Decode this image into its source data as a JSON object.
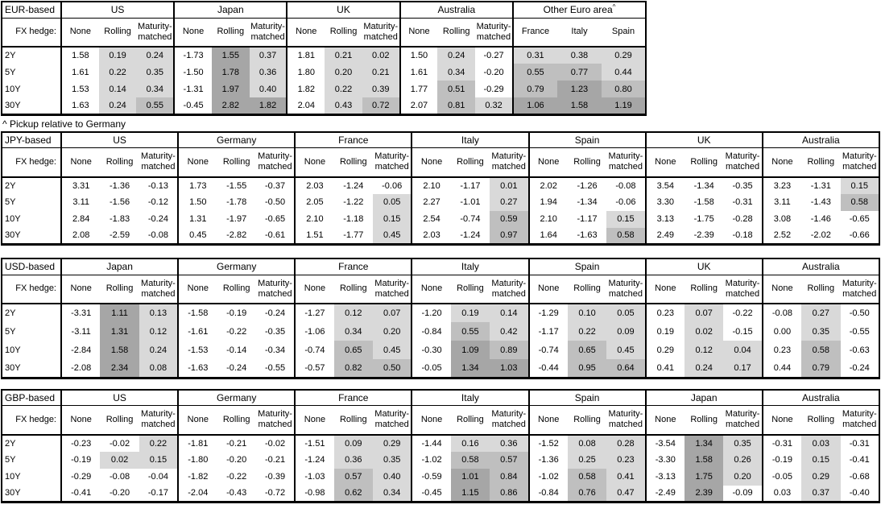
{
  "footnote": "^ Pickup relative to Germany",
  "fx_hedge_label": "FX hedge:",
  "row_labels": [
    "2Y",
    "5Y",
    "10Y",
    "30Y"
  ],
  "sub_headers": [
    "None",
    "Rolling",
    "Maturity-matched"
  ],
  "colors": {
    "cell_light": "#d9d9d9",
    "cell_medium": "#bfbfbf",
    "cell_dark": "#a6a6a6",
    "border": "#000000",
    "background": "#ffffff"
  },
  "shading_legend": {
    "rule": "hedged and pickup columns shaded by value; None columns and negatives unshaded",
    "bins": [
      {
        "min": 0.0,
        "max": 0.5,
        "color": "cell_light"
      },
      {
        "min": 0.5,
        "max": 1.0,
        "color": "cell_medium"
      },
      {
        "min": 1.0,
        "color": "cell_dark"
      }
    ]
  },
  "chart_data": {
    "type": "table",
    "subtype": "heatmap",
    "tables": [
      {
        "id": "eur-based",
        "base_label": "EUR-based",
        "groups": [
          {
            "name": "US",
            "sup": "",
            "columns": [
              "None",
              "Rolling",
              "Maturity-matched"
            ],
            "values": [
              [
                "1.58",
                "0.19",
                "0.24"
              ],
              [
                "1.61",
                "0.22",
                "0.35"
              ],
              [
                "1.53",
                "0.14",
                "0.34"
              ],
              [
                "1.63",
                "0.24",
                "0.55"
              ]
            ]
          },
          {
            "name": "Japan",
            "sup": "",
            "columns": [
              "None",
              "Rolling",
              "Maturity-matched"
            ],
            "values": [
              [
                "-1.73",
                "1.55",
                "0.37"
              ],
              [
                "-1.50",
                "1.78",
                "0.36"
              ],
              [
                "-1.31",
                "1.97",
                "0.40"
              ],
              [
                "-0.45",
                "2.82",
                "1.82"
              ]
            ]
          },
          {
            "name": "UK",
            "sup": "",
            "columns": [
              "None",
              "Rolling",
              "Maturity-matched"
            ],
            "values": [
              [
                "1.81",
                "0.21",
                "0.02"
              ],
              [
                "1.80",
                "0.20",
                "0.21"
              ],
              [
                "1.82",
                "0.22",
                "0.39"
              ],
              [
                "2.04",
                "0.43",
                "0.72"
              ]
            ]
          },
          {
            "name": "Australia",
            "sup": "",
            "columns": [
              "None",
              "Rolling",
              "Maturity-matched"
            ],
            "values": [
              [
                "1.50",
                "0.24",
                "-0.27"
              ],
              [
                "1.61",
                "0.34",
                "-0.20"
              ],
              [
                "1.77",
                "0.51",
                "-0.29"
              ],
              [
                "2.07",
                "0.81",
                "0.32"
              ]
            ]
          },
          {
            "name": "Other Euro area",
            "sup": "^",
            "columns": [
              "France",
              "Italy",
              "Spain"
            ],
            "values": [
              [
                "0.31",
                "0.38",
                "0.29"
              ],
              [
                "0.55",
                "0.77",
                "0.44"
              ],
              [
                "0.79",
                "1.23",
                "0.80"
              ],
              [
                "1.06",
                "1.58",
                "1.19"
              ]
            ]
          }
        ]
      },
      {
        "id": "jpy-based",
        "base_label": "JPY-based",
        "groups": [
          {
            "name": "US",
            "sup": "",
            "columns": [
              "None",
              "Rolling",
              "Maturity-matched"
            ],
            "values": [
              [
                "3.31",
                "-1.36",
                "-0.13"
              ],
              [
                "3.11",
                "-1.56",
                "-0.12"
              ],
              [
                "2.84",
                "-1.83",
                "-0.24"
              ],
              [
                "2.08",
                "-2.59",
                "-0.08"
              ]
            ]
          },
          {
            "name": "Germany",
            "sup": "",
            "columns": [
              "None",
              "Rolling",
              "Maturity-matched"
            ],
            "values": [
              [
                "1.73",
                "-1.55",
                "-0.37"
              ],
              [
                "1.50",
                "-1.78",
                "-0.50"
              ],
              [
                "1.31",
                "-1.97",
                "-0.65"
              ],
              [
                "0.45",
                "-2.82",
                "-0.61"
              ]
            ]
          },
          {
            "name": "France",
            "sup": "",
            "columns": [
              "None",
              "Rolling",
              "Maturity-matched"
            ],
            "values": [
              [
                "2.03",
                "-1.24",
                "-0.06"
              ],
              [
                "2.05",
                "-1.22",
                "0.05"
              ],
              [
                "2.10",
                "-1.18",
                "0.15"
              ],
              [
                "1.51",
                "-1.77",
                "0.45"
              ]
            ]
          },
          {
            "name": "Italy",
            "sup": "",
            "columns": [
              "None",
              "Rolling",
              "Maturity-matched"
            ],
            "values": [
              [
                "2.10",
                "-1.17",
                "0.01"
              ],
              [
                "2.27",
                "-1.01",
                "0.27"
              ],
              [
                "2.54",
                "-0.74",
                "0.59"
              ],
              [
                "2.03",
                "-1.24",
                "0.97"
              ]
            ]
          },
          {
            "name": "Spain",
            "sup": "",
            "columns": [
              "None",
              "Rolling",
              "Maturity-matched"
            ],
            "values": [
              [
                "2.02",
                "-1.26",
                "-0.08"
              ],
              [
                "1.94",
                "-1.34",
                "-0.06"
              ],
              [
                "2.10",
                "-1.17",
                "0.15"
              ],
              [
                "1.64",
                "-1.63",
                "0.58"
              ]
            ]
          },
          {
            "name": "UK",
            "sup": "",
            "columns": [
              "None",
              "Rolling",
              "Maturity-matched"
            ],
            "values": [
              [
                "3.54",
                "-1.34",
                "-0.35"
              ],
              [
                "3.30",
                "-1.58",
                "-0.31"
              ],
              [
                "3.13",
                "-1.75",
                "-0.28"
              ],
              [
                "2.49",
                "-2.39",
                "-0.18"
              ]
            ]
          },
          {
            "name": "Australia",
            "sup": "",
            "columns": [
              "None",
              "Rolling",
              "Maturity-matched"
            ],
            "values": [
              [
                "3.23",
                "-1.31",
                "0.15"
              ],
              [
                "3.11",
                "-1.43",
                "0.58"
              ],
              [
                "3.08",
                "-1.46",
                "-0.65"
              ],
              [
                "2.52",
                "-2.02",
                "-0.66"
              ]
            ]
          }
        ]
      },
      {
        "id": "usd-based",
        "base_label": "USD-based",
        "groups": [
          {
            "name": "Japan",
            "sup": "",
            "columns": [
              "None",
              "Rolling",
              "Maturity-matched"
            ],
            "values": [
              [
                "-3.31",
                "1.11",
                "0.13"
              ],
              [
                "-3.11",
                "1.31",
                "0.12"
              ],
              [
                "-2.84",
                "1.58",
                "0.24"
              ],
              [
                "-2.08",
                "2.34",
                "0.08"
              ]
            ]
          },
          {
            "name": "Germany",
            "sup": "",
            "columns": [
              "None",
              "Rolling",
              "Maturity-matched"
            ],
            "values": [
              [
                "-1.58",
                "-0.19",
                "-0.24"
              ],
              [
                "-1.61",
                "-0.22",
                "-0.35"
              ],
              [
                "-1.53",
                "-0.14",
                "-0.34"
              ],
              [
                "-1.63",
                "-0.24",
                "-0.55"
              ]
            ]
          },
          {
            "name": "France",
            "sup": "",
            "columns": [
              "None",
              "Rolling",
              "Maturity-matched"
            ],
            "values": [
              [
                "-1.27",
                "0.12",
                "0.07"
              ],
              [
                "-1.06",
                "0.34",
                "0.20"
              ],
              [
                "-0.74",
                "0.65",
                "0.45"
              ],
              [
                "-0.57",
                "0.82",
                "0.50"
              ]
            ]
          },
          {
            "name": "Italy",
            "sup": "",
            "columns": [
              "None",
              "Rolling",
              "Maturity-matched"
            ],
            "values": [
              [
                "-1.20",
                "0.19",
                "0.14"
              ],
              [
                "-0.84",
                "0.55",
                "0.42"
              ],
              [
                "-0.30",
                "1.09",
                "0.89"
              ],
              [
                "-0.05",
                "1.34",
                "1.03"
              ]
            ]
          },
          {
            "name": "Spain",
            "sup": "",
            "columns": [
              "None",
              "Rolling",
              "Maturity-matched"
            ],
            "values": [
              [
                "-1.29",
                "0.10",
                "0.05"
              ],
              [
                "-1.17",
                "0.22",
                "0.09"
              ],
              [
                "-0.74",
                "0.65",
                "0.45"
              ],
              [
                "-0.44",
                "0.95",
                "0.64"
              ]
            ]
          },
          {
            "name": "UK",
            "sup": "",
            "columns": [
              "None",
              "Rolling",
              "Maturity-matched"
            ],
            "values": [
              [
                "0.23",
                "0.07",
                "-0.22"
              ],
              [
                "0.19",
                "0.02",
                "-0.15"
              ],
              [
                "0.29",
                "0.12",
                "0.04"
              ],
              [
                "0.41",
                "0.24",
                "0.17"
              ]
            ]
          },
          {
            "name": "Australia",
            "sup": "",
            "columns": [
              "None",
              "Rolling",
              "Maturity-matched"
            ],
            "values": [
              [
                "-0.08",
                "0.27",
                "-0.50"
              ],
              [
                "0.00",
                "0.35",
                "-0.55"
              ],
              [
                "0.23",
                "0.58",
                "-0.63"
              ],
              [
                "0.44",
                "0.79",
                "-0.24"
              ]
            ]
          }
        ]
      },
      {
        "id": "gbp-based",
        "base_label": "GBP-based",
        "groups": [
          {
            "name": "US",
            "sup": "",
            "columns": [
              "None",
              "Rolling",
              "Maturity-matched"
            ],
            "values": [
              [
                "-0.23",
                "-0.02",
                "0.22"
              ],
              [
                "-0.19",
                "0.02",
                "0.15"
              ],
              [
                "-0.29",
                "-0.08",
                "-0.04"
              ],
              [
                "-0.41",
                "-0.20",
                "-0.17"
              ]
            ]
          },
          {
            "name": "Germany",
            "sup": "",
            "columns": [
              "None",
              "Rolling",
              "Maturity-matched"
            ],
            "values": [
              [
                "-1.81",
                "-0.21",
                "-0.02"
              ],
              [
                "-1.80",
                "-0.20",
                "-0.21"
              ],
              [
                "-1.82",
                "-0.22",
                "-0.39"
              ],
              [
                "-2.04",
                "-0.43",
                "-0.72"
              ]
            ]
          },
          {
            "name": "France",
            "sup": "",
            "columns": [
              "None",
              "Rolling",
              "Maturity-matched"
            ],
            "values": [
              [
                "-1.51",
                "0.09",
                "0.29"
              ],
              [
                "-1.24",
                "0.36",
                "0.35"
              ],
              [
                "-1.03",
                "0.57",
                "0.40"
              ],
              [
                "-0.98",
                "0.62",
                "0.34"
              ]
            ]
          },
          {
            "name": "Italy",
            "sup": "",
            "columns": [
              "None",
              "Rolling",
              "Maturity-matched"
            ],
            "values": [
              [
                "-1.44",
                "0.16",
                "0.36"
              ],
              [
                "-1.02",
                "0.58",
                "0.57"
              ],
              [
                "-0.59",
                "1.01",
                "0.84"
              ],
              [
                "-0.45",
                "1.15",
                "0.86"
              ]
            ]
          },
          {
            "name": "Spain",
            "sup": "",
            "columns": [
              "None",
              "Rolling",
              "Maturity-matched"
            ],
            "values": [
              [
                "-1.52",
                "0.08",
                "0.28"
              ],
              [
                "-1.36",
                "0.25",
                "0.23"
              ],
              [
                "-1.02",
                "0.58",
                "0.41"
              ],
              [
                "-0.84",
                "0.76",
                "0.47"
              ]
            ]
          },
          {
            "name": "Japan",
            "sup": "",
            "columns": [
              "None",
              "Rolling",
              "Maturity-matched"
            ],
            "values": [
              [
                "-3.54",
                "1.34",
                "0.35"
              ],
              [
                "-3.30",
                "1.58",
                "0.26"
              ],
              [
                "-3.13",
                "1.75",
                "0.20"
              ],
              [
                "-2.49",
                "2.39",
                "-0.09"
              ]
            ]
          },
          {
            "name": "Australia",
            "sup": "",
            "columns": [
              "None",
              "Rolling",
              "Maturity-matched"
            ],
            "values": [
              [
                "-0.31",
                "0.03",
                "-0.31"
              ],
              [
                "-0.19",
                "0.15",
                "-0.41"
              ],
              [
                "-0.05",
                "0.29",
                "-0.68"
              ],
              [
                "0.03",
                "0.37",
                "-0.40"
              ]
            ]
          }
        ]
      }
    ]
  }
}
